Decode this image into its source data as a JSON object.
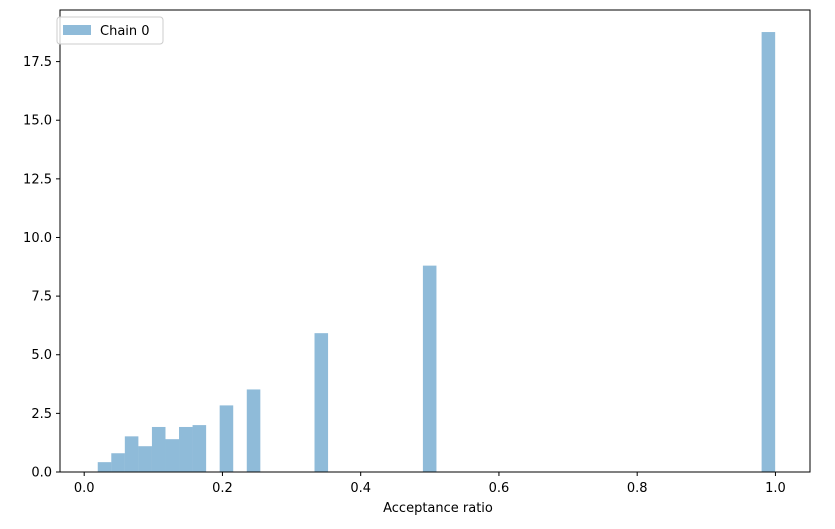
{
  "chart_data": {
    "type": "bar",
    "title": "",
    "xlabel": "Acceptance ratio",
    "ylabel": "",
    "xlim": [
      -0.035,
      1.05
    ],
    "ylim": [
      0,
      19.7
    ],
    "xticks": [
      0.0,
      0.2,
      0.4,
      0.6,
      0.8,
      1.0
    ],
    "xtick_labels": [
      "0.0",
      "0.2",
      "0.4",
      "0.6",
      "0.8",
      "1.0"
    ],
    "yticks": [
      0.0,
      2.5,
      5.0,
      7.5,
      10.0,
      12.5,
      15.0,
      17.5
    ],
    "ytick_labels": [
      "0.0",
      "2.5",
      "5.0",
      "7.5",
      "10.0",
      "12.5",
      "15.0",
      "17.5"
    ],
    "grid": false,
    "legend_position": "upper left",
    "series": [
      {
        "name": "Chain 0",
        "color": "#1f77b4",
        "alpha": 0.5,
        "bin_width": 0.0196,
        "bins": [
          {
            "x": 0.0196,
            "value": 0.42
          },
          {
            "x": 0.0392,
            "value": 0.8
          },
          {
            "x": 0.0588,
            "value": 1.52
          },
          {
            "x": 0.0784,
            "value": 1.1
          },
          {
            "x": 0.098,
            "value": 1.92
          },
          {
            "x": 0.1176,
            "value": 1.4
          },
          {
            "x": 0.1372,
            "value": 1.92
          },
          {
            "x": 0.1568,
            "value": 2.0
          },
          {
            "x": 0.196,
            "value": 2.84
          },
          {
            "x": 0.2352,
            "value": 3.52
          },
          {
            "x": 0.3332,
            "value": 5.92
          },
          {
            "x": 0.49,
            "value": 8.8
          },
          {
            "x": 0.98,
            "value": 18.76
          }
        ]
      }
    ]
  }
}
